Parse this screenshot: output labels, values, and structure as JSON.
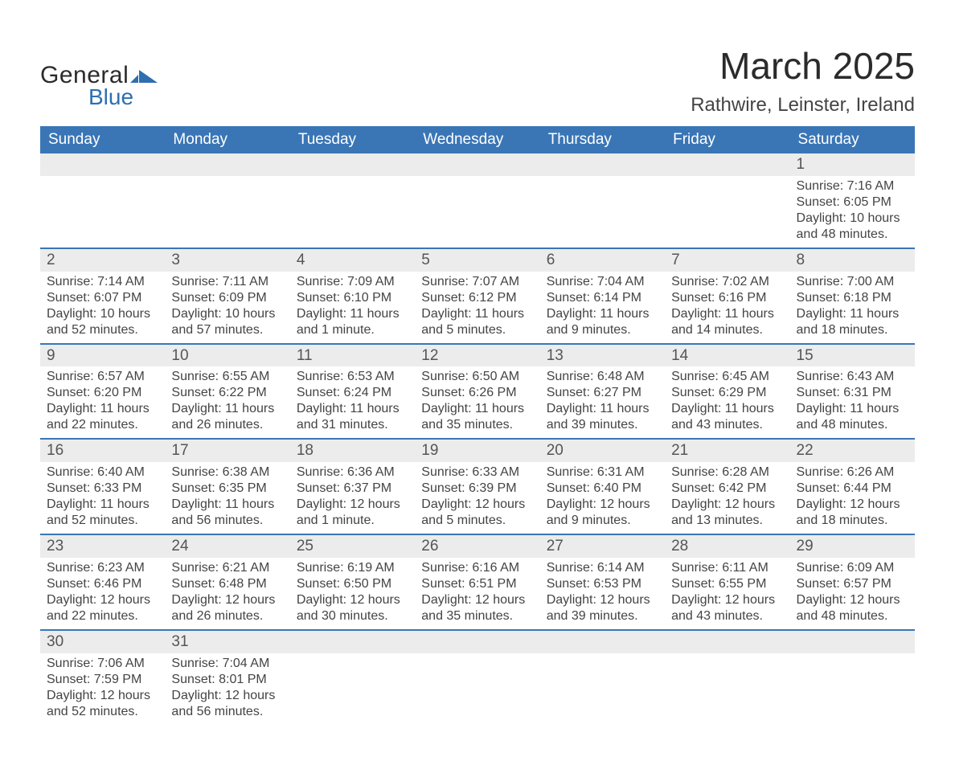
{
  "brand": {
    "word1": "General",
    "word2": "Blue",
    "mark_color": "#2f6eb0",
    "text_dark": "#2b2b2b"
  },
  "title": "March 2025",
  "location": "Rathwire, Leinster, Ireland",
  "colors": {
    "header_bg": "#3a76b6",
    "header_text": "#ffffff",
    "row_divider": "#3a76b6",
    "band_bg": "#ececec",
    "body_text": "#444444"
  },
  "days_of_week": [
    "Sunday",
    "Monday",
    "Tuesday",
    "Wednesday",
    "Thursday",
    "Friday",
    "Saturday"
  ],
  "weeks": [
    [
      {
        "n": "",
        "sr": "",
        "ss": "",
        "dl": ""
      },
      {
        "n": "",
        "sr": "",
        "ss": "",
        "dl": ""
      },
      {
        "n": "",
        "sr": "",
        "ss": "",
        "dl": ""
      },
      {
        "n": "",
        "sr": "",
        "ss": "",
        "dl": ""
      },
      {
        "n": "",
        "sr": "",
        "ss": "",
        "dl": ""
      },
      {
        "n": "",
        "sr": "",
        "ss": "",
        "dl": ""
      },
      {
        "n": "1",
        "sr": "Sunrise: 7:16 AM",
        "ss": "Sunset: 6:05 PM",
        "dl": "Daylight: 10 hours and 48 minutes."
      }
    ],
    [
      {
        "n": "2",
        "sr": "Sunrise: 7:14 AM",
        "ss": "Sunset: 6:07 PM",
        "dl": "Daylight: 10 hours and 52 minutes."
      },
      {
        "n": "3",
        "sr": "Sunrise: 7:11 AM",
        "ss": "Sunset: 6:09 PM",
        "dl": "Daylight: 10 hours and 57 minutes."
      },
      {
        "n": "4",
        "sr": "Sunrise: 7:09 AM",
        "ss": "Sunset: 6:10 PM",
        "dl": "Daylight: 11 hours and 1 minute."
      },
      {
        "n": "5",
        "sr": "Sunrise: 7:07 AM",
        "ss": "Sunset: 6:12 PM",
        "dl": "Daylight: 11 hours and 5 minutes."
      },
      {
        "n": "6",
        "sr": "Sunrise: 7:04 AM",
        "ss": "Sunset: 6:14 PM",
        "dl": "Daylight: 11 hours and 9 minutes."
      },
      {
        "n": "7",
        "sr": "Sunrise: 7:02 AM",
        "ss": "Sunset: 6:16 PM",
        "dl": "Daylight: 11 hours and 14 minutes."
      },
      {
        "n": "8",
        "sr": "Sunrise: 7:00 AM",
        "ss": "Sunset: 6:18 PM",
        "dl": "Daylight: 11 hours and 18 minutes."
      }
    ],
    [
      {
        "n": "9",
        "sr": "Sunrise: 6:57 AM",
        "ss": "Sunset: 6:20 PM",
        "dl": "Daylight: 11 hours and 22 minutes."
      },
      {
        "n": "10",
        "sr": "Sunrise: 6:55 AM",
        "ss": "Sunset: 6:22 PM",
        "dl": "Daylight: 11 hours and 26 minutes."
      },
      {
        "n": "11",
        "sr": "Sunrise: 6:53 AM",
        "ss": "Sunset: 6:24 PM",
        "dl": "Daylight: 11 hours and 31 minutes."
      },
      {
        "n": "12",
        "sr": "Sunrise: 6:50 AM",
        "ss": "Sunset: 6:26 PM",
        "dl": "Daylight: 11 hours and 35 minutes."
      },
      {
        "n": "13",
        "sr": "Sunrise: 6:48 AM",
        "ss": "Sunset: 6:27 PM",
        "dl": "Daylight: 11 hours and 39 minutes."
      },
      {
        "n": "14",
        "sr": "Sunrise: 6:45 AM",
        "ss": "Sunset: 6:29 PM",
        "dl": "Daylight: 11 hours and 43 minutes."
      },
      {
        "n": "15",
        "sr": "Sunrise: 6:43 AM",
        "ss": "Sunset: 6:31 PM",
        "dl": "Daylight: 11 hours and 48 minutes."
      }
    ],
    [
      {
        "n": "16",
        "sr": "Sunrise: 6:40 AM",
        "ss": "Sunset: 6:33 PM",
        "dl": "Daylight: 11 hours and 52 minutes."
      },
      {
        "n": "17",
        "sr": "Sunrise: 6:38 AM",
        "ss": "Sunset: 6:35 PM",
        "dl": "Daylight: 11 hours and 56 minutes."
      },
      {
        "n": "18",
        "sr": "Sunrise: 6:36 AM",
        "ss": "Sunset: 6:37 PM",
        "dl": "Daylight: 12 hours and 1 minute."
      },
      {
        "n": "19",
        "sr": "Sunrise: 6:33 AM",
        "ss": "Sunset: 6:39 PM",
        "dl": "Daylight: 12 hours and 5 minutes."
      },
      {
        "n": "20",
        "sr": "Sunrise: 6:31 AM",
        "ss": "Sunset: 6:40 PM",
        "dl": "Daylight: 12 hours and 9 minutes."
      },
      {
        "n": "21",
        "sr": "Sunrise: 6:28 AM",
        "ss": "Sunset: 6:42 PM",
        "dl": "Daylight: 12 hours and 13 minutes."
      },
      {
        "n": "22",
        "sr": "Sunrise: 6:26 AM",
        "ss": "Sunset: 6:44 PM",
        "dl": "Daylight: 12 hours and 18 minutes."
      }
    ],
    [
      {
        "n": "23",
        "sr": "Sunrise: 6:23 AM",
        "ss": "Sunset: 6:46 PM",
        "dl": "Daylight: 12 hours and 22 minutes."
      },
      {
        "n": "24",
        "sr": "Sunrise: 6:21 AM",
        "ss": "Sunset: 6:48 PM",
        "dl": "Daylight: 12 hours and 26 minutes."
      },
      {
        "n": "25",
        "sr": "Sunrise: 6:19 AM",
        "ss": "Sunset: 6:50 PM",
        "dl": "Daylight: 12 hours and 30 minutes."
      },
      {
        "n": "26",
        "sr": "Sunrise: 6:16 AM",
        "ss": "Sunset: 6:51 PM",
        "dl": "Daylight: 12 hours and 35 minutes."
      },
      {
        "n": "27",
        "sr": "Sunrise: 6:14 AM",
        "ss": "Sunset: 6:53 PM",
        "dl": "Daylight: 12 hours and 39 minutes."
      },
      {
        "n": "28",
        "sr": "Sunrise: 6:11 AM",
        "ss": "Sunset: 6:55 PM",
        "dl": "Daylight: 12 hours and 43 minutes."
      },
      {
        "n": "29",
        "sr": "Sunrise: 6:09 AM",
        "ss": "Sunset: 6:57 PM",
        "dl": "Daylight: 12 hours and 48 minutes."
      }
    ],
    [
      {
        "n": "30",
        "sr": "Sunrise: 7:06 AM",
        "ss": "Sunset: 7:59 PM",
        "dl": "Daylight: 12 hours and 52 minutes."
      },
      {
        "n": "31",
        "sr": "Sunrise: 7:04 AM",
        "ss": "Sunset: 8:01 PM",
        "dl": "Daylight: 12 hours and 56 minutes."
      },
      {
        "n": "",
        "sr": "",
        "ss": "",
        "dl": ""
      },
      {
        "n": "",
        "sr": "",
        "ss": "",
        "dl": ""
      },
      {
        "n": "",
        "sr": "",
        "ss": "",
        "dl": ""
      },
      {
        "n": "",
        "sr": "",
        "ss": "",
        "dl": ""
      },
      {
        "n": "",
        "sr": "",
        "ss": "",
        "dl": ""
      }
    ]
  ]
}
